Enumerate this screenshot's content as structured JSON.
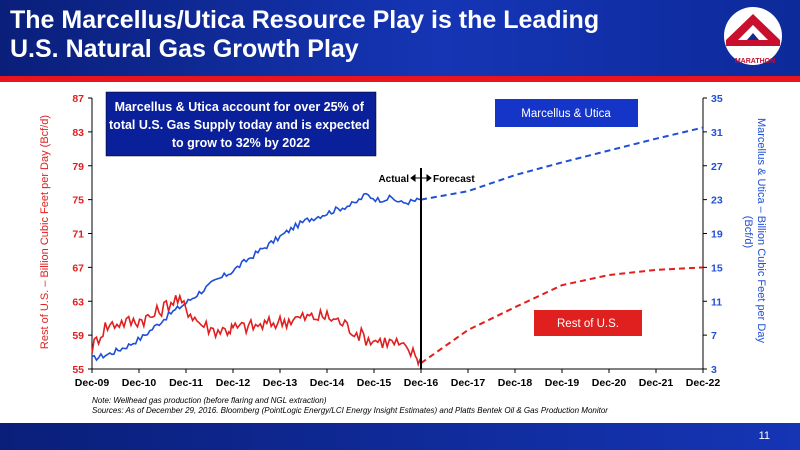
{
  "slide": {
    "title": "The Marcellus/Utica Resource Play is the Leading U.S. Natural Gas Growth Play",
    "logo_text": "MARATHON",
    "page_number": "11",
    "note": "Note: Wellhead gas production (before flaring and NGL extraction)",
    "sources": "Sources: As of December 29, 2016. Bloomberg (PointLogic Energy/LCI Energy Insight Estimates) and Platts Bentek Oil & Gas Production Monitor",
    "colors": {
      "header_blue": "#1535b5",
      "accent_red": "#e8141e",
      "blue_series": "#1f4fd6",
      "red_series": "#e01f1f"
    }
  },
  "chart_data": {
    "type": "line",
    "callout": "Marcellus & Utica account for over 25% of total U.S. Gas Supply today and is expected to grow to 32% by 2022",
    "divider_labels": {
      "actual": "Actual",
      "forecast": "Forecast",
      "at": "Dec-16"
    },
    "x_ticks": [
      "Dec-09",
      "Dec-10",
      "Dec-11",
      "Dec-12",
      "Dec-13",
      "Dec-14",
      "Dec-15",
      "Dec-16",
      "Dec-17",
      "Dec-18",
      "Dec-19",
      "Dec-20",
      "Dec-21",
      "Dec-22"
    ],
    "left_axis": {
      "label": "Rest of U.S. – Billion Cubic Feet per Day (Bcf/d)",
      "ticks": [
        "87",
        "83",
        "79",
        "75",
        "71",
        "67",
        "63",
        "59",
        "55"
      ],
      "range": [
        55,
        87
      ]
    },
    "right_axis": {
      "label": "Marcellus & Utica – Billion Cubic Feet per Day (Bcf/d)",
      "ticks": [
        "35",
        "31",
        "27",
        "23",
        "19",
        "15",
        "11",
        "7",
        "3"
      ],
      "range": [
        3,
        35
      ]
    },
    "series": [
      {
        "name": "Marcellus & Utica",
        "axis": "right",
        "actual": [
          [
            2009.92,
            4.2
          ],
          [
            2010.3,
            4.8
          ],
          [
            2010.7,
            5.8
          ],
          [
            2011.0,
            6.8
          ],
          [
            2011.3,
            8.2
          ],
          [
            2011.6,
            9.6
          ],
          [
            2011.92,
            10.8
          ],
          [
            2012.2,
            12.0
          ],
          [
            2012.5,
            13.2
          ],
          [
            2012.92,
            14.6
          ],
          [
            2013.2,
            15.8
          ],
          [
            2013.5,
            17.0
          ],
          [
            2013.92,
            18.6
          ],
          [
            2014.2,
            19.7
          ],
          [
            2014.5,
            20.6
          ],
          [
            2014.92,
            21.4
          ],
          [
            2015.2,
            22.0
          ],
          [
            2015.5,
            22.5
          ],
          [
            2015.75,
            23.6
          ],
          [
            2016.0,
            23.0
          ],
          [
            2016.3,
            23.2
          ],
          [
            2016.5,
            22.6
          ],
          [
            2016.75,
            22.8
          ],
          [
            2016.92,
            23.0
          ]
        ],
        "forecast": [
          [
            2016.92,
            23.0
          ],
          [
            2017.92,
            24.0
          ],
          [
            2018.92,
            25.9
          ],
          [
            2019.92,
            27.4
          ],
          [
            2020.92,
            28.8
          ],
          [
            2021.92,
            30.2
          ],
          [
            2022.92,
            31.5
          ]
        ]
      },
      {
        "name": "Rest of U.S.",
        "axis": "left",
        "actual": [
          [
            2009.92,
            57.5
          ],
          [
            2010.2,
            60.0
          ],
          [
            2010.5,
            60.5
          ],
          [
            2010.8,
            60.6
          ],
          [
            2011.2,
            61.2
          ],
          [
            2011.5,
            62.5
          ],
          [
            2011.7,
            63.3
          ],
          [
            2011.92,
            62.2
          ],
          [
            2012.2,
            60.5
          ],
          [
            2012.5,
            59.6
          ],
          [
            2012.8,
            59.6
          ],
          [
            2012.92,
            59.8
          ],
          [
            2013.2,
            60.0
          ],
          [
            2013.5,
            60.1
          ],
          [
            2013.92,
            60.6
          ],
          [
            2014.2,
            60.9
          ],
          [
            2014.5,
            61.1
          ],
          [
            2014.92,
            61.2
          ],
          [
            2015.2,
            60.6
          ],
          [
            2015.5,
            59.5
          ],
          [
            2015.8,
            58.5
          ],
          [
            2016.1,
            58.3
          ],
          [
            2016.4,
            58.0
          ],
          [
            2016.6,
            57.2
          ],
          [
            2016.8,
            56.7
          ],
          [
            2016.92,
            55.7
          ]
        ],
        "forecast": [
          [
            2016.92,
            55.7
          ],
          [
            2017.92,
            59.6
          ],
          [
            2018.92,
            62.3
          ],
          [
            2019.92,
            64.9
          ],
          [
            2020.92,
            66.1
          ],
          [
            2021.92,
            66.7
          ],
          [
            2022.92,
            67.0
          ]
        ]
      }
    ]
  }
}
